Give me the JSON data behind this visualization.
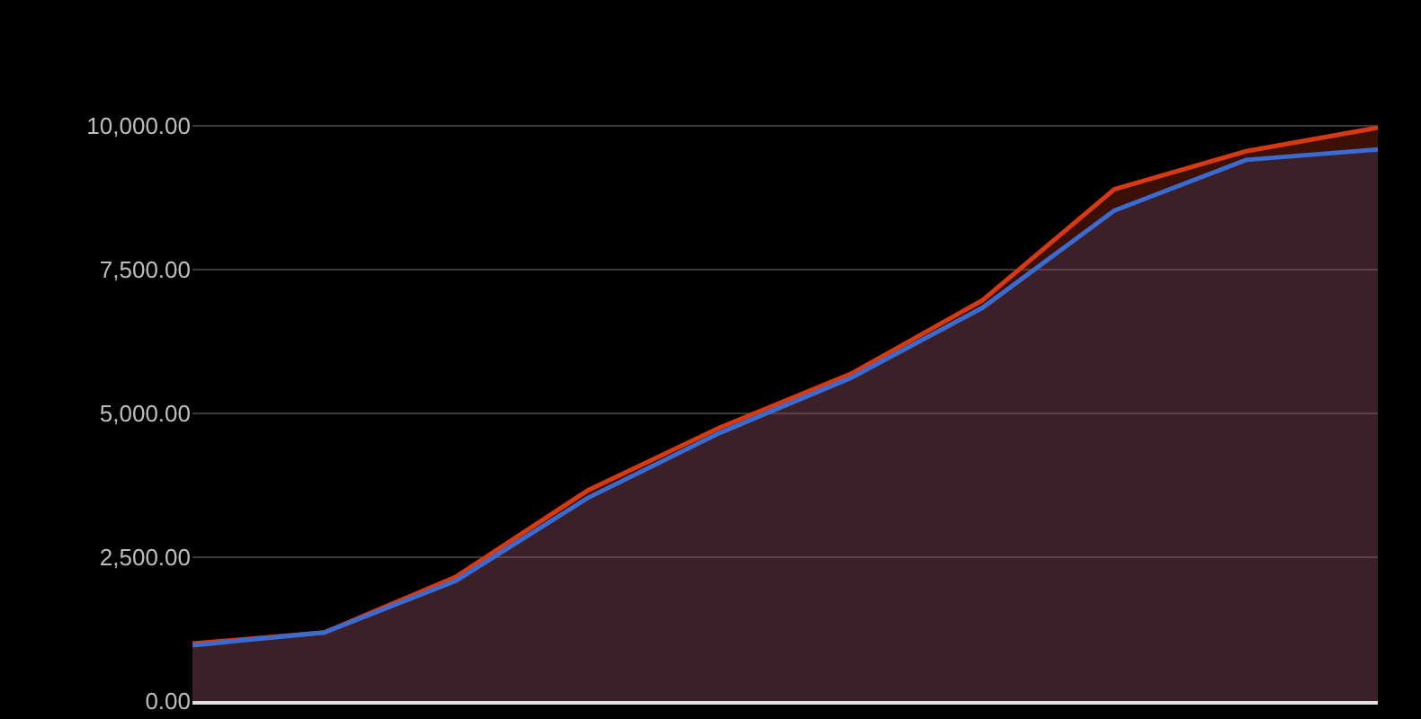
{
  "chart_data": {
    "type": "area",
    "categories": [
      null,
      null,
      null,
      null,
      null,
      null,
      null,
      null,
      null,
      null
    ],
    "series": [
      {
        "color": "#d63a12",
        "values": [
          1000,
          1190,
          2160,
          3660,
          4750,
          5690,
          6970,
          8900,
          9560,
          9970
        ]
      },
      {
        "color": "#3a6bd0",
        "values": [
          970,
          1190,
          2090,
          3530,
          4660,
          5620,
          6840,
          8530,
          9410,
          9590
        ]
      }
    ],
    "ylim": [
      0,
      12190
    ],
    "yticks": [
      {
        "value": 0,
        "label": "0.00"
      },
      {
        "value": 2500,
        "label": "2,500.00"
      },
      {
        "value": 5000,
        "label": "5,000.00"
      },
      {
        "value": 7500,
        "label": "7,500.00"
      },
      {
        "value": 10000,
        "label": "10,000.00"
      }
    ],
    "grid": "y"
  }
}
